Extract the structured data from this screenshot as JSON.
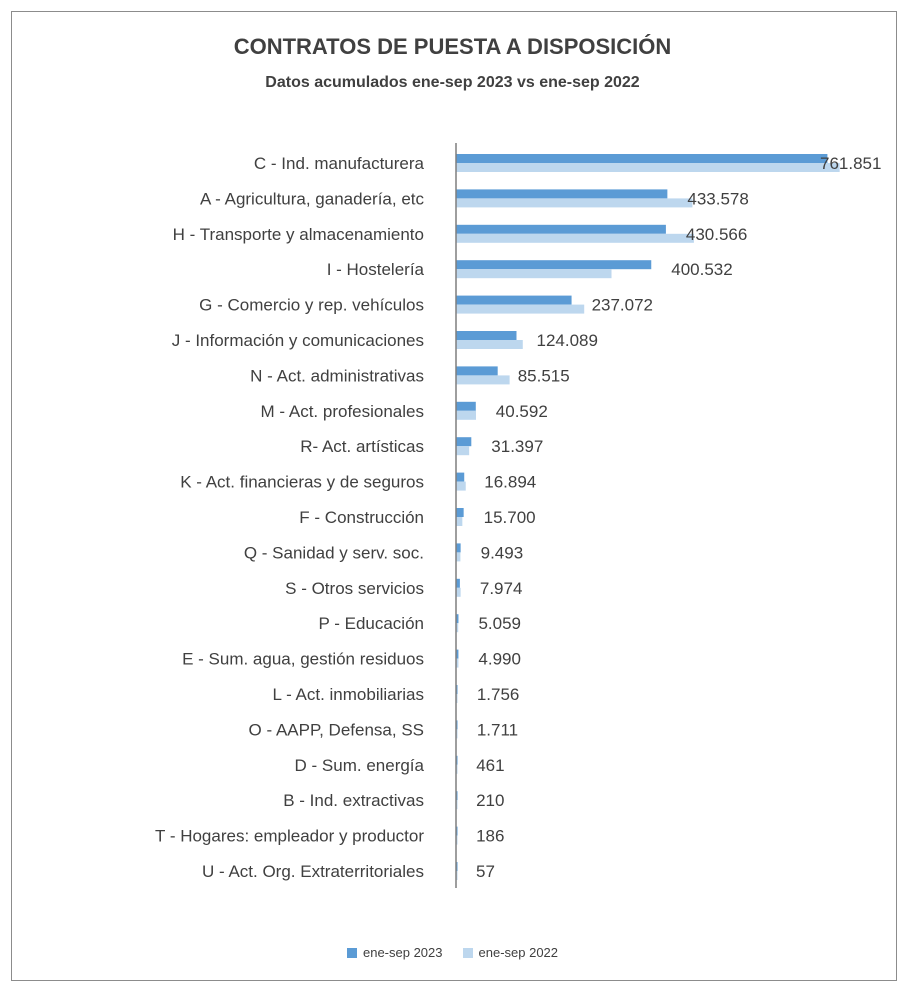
{
  "chart_data": {
    "type": "bar",
    "orientation": "horizontal",
    "title": "CONTRATOS DE PUESTA A DISPOSICIÓN",
    "subtitle": "Datos acumulados  ene-sep 2023 vs ene-sep 2022",
    "categories": [
      "C - Ind. manufacturera",
      "A - Agricultura, ganadería, etc",
      "H - Transporte y almacenamiento",
      "I - Hostelería",
      "G - Comercio y rep. vehículos",
      "J - Información y comunicaciones",
      "N - Act. administrativas",
      "M - Act. profesionales",
      "R-  Act. artísticas",
      "K - Act. financieras y de seguros",
      "F - Construcción",
      "Q - Sanidad y serv. soc.",
      "S - Otros servicios",
      "P - Educación",
      "E - Sum. agua, gestión residuos",
      "L - Act. inmobiliarias",
      "O - AAPP, Defensa, SS",
      "D - Sum. energía ",
      "B - Ind. extractivas",
      "T - Hogares: empleador y productor",
      "U - Act. Org. Extraterritoriales"
    ],
    "series": [
      {
        "name": "ene-sep 2023",
        "color": "#5b9bd5",
        "values": [
          761851,
          433578,
          430566,
          400532,
          237072,
          124089,
          85515,
          40592,
          31397,
          16894,
          15700,
          9493,
          7974,
          5059,
          4990,
          1756,
          1711,
          461,
          210,
          186,
          57
        ]
      },
      {
        "name": "ene-sep 2022",
        "color": "#bdd7ee",
        "values": [
          787000,
          485000,
          488000,
          319000,
          263000,
          137000,
          110000,
          41000,
          27000,
          20000,
          13000,
          9000,
          9500,
          4500,
          5000,
          1700,
          1500,
          500,
          220,
          180,
          70
        ]
      }
    ],
    "data_labels": [
      "761.851",
      "433.578",
      "430.566",
      "400.532",
      "237.072",
      "124.089",
      "85.515",
      "40.592",
      "31.397",
      "16.894",
      "15.700",
      "9.493",
      "7.974",
      "5.059",
      "4.990",
      "1.756",
      "1.711",
      "461",
      "210",
      "186",
      "57"
    ],
    "xlim": [
      0,
      800000
    ],
    "grid": false,
    "legend_position": "bottom"
  }
}
